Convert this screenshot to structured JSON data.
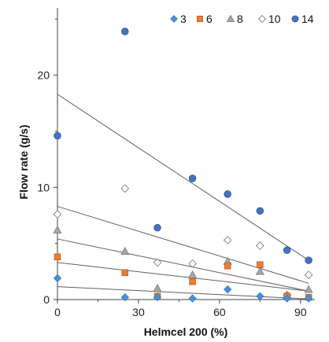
{
  "chart_data": {
    "type": "scatter",
    "title": "",
    "xlabel": "Helmcel 200 (%)",
    "ylabel": "Flow rate (g/s)",
    "xlim": [
      0,
      95
    ],
    "ylim": [
      0,
      26
    ],
    "x_ticks": [
      "0",
      "30",
      "60",
      "90"
    ],
    "x_tick_values": [
      0,
      30,
      60,
      90
    ],
    "y_ticks": [
      "0",
      "10",
      "20"
    ],
    "y_tick_values": [
      0,
      10,
      20
    ],
    "grid": false,
    "legend_position": "top-right",
    "series": [
      {
        "name": "3",
        "marker": "diamond",
        "color": "#4a90d9",
        "points": [
          [
            0,
            1.9
          ],
          [
            25,
            0.2
          ],
          [
            37,
            0.2
          ],
          [
            50,
            0.1
          ],
          [
            63,
            0.9
          ],
          [
            75,
            0.3
          ],
          [
            85,
            0.1
          ],
          [
            93,
            0.1
          ]
        ],
        "trend": [
          [
            0,
            1.15
          ],
          [
            93,
            0.05
          ]
        ]
      },
      {
        "name": "6",
        "marker": "square",
        "color": "#ed7d31",
        "points": [
          [
            0,
            3.8
          ],
          [
            25,
            2.4
          ],
          [
            37,
            0.3
          ],
          [
            50,
            1.6
          ],
          [
            63,
            3.0
          ],
          [
            75,
            3.1
          ],
          [
            85,
            0.3
          ],
          [
            93,
            0.2
          ]
        ],
        "trend": [
          [
            0,
            3.3
          ],
          [
            93,
            0.75
          ]
        ]
      },
      {
        "name": "8",
        "marker": "triangle",
        "color": "#a6a6a6",
        "points": [
          [
            0,
            6.2
          ],
          [
            25,
            4.3
          ],
          [
            37,
            1.0
          ],
          [
            50,
            2.2
          ],
          [
            63,
            3.4
          ],
          [
            75,
            2.5
          ],
          [
            85,
            0.4
          ],
          [
            93,
            0.9
          ]
        ],
        "trend": [
          [
            0,
            5.4
          ],
          [
            93,
            0.75
          ]
        ]
      },
      {
        "name": "10",
        "marker": "open-diamond",
        "color": "#ffffff",
        "points": [
          [
            0,
            7.6
          ],
          [
            25,
            9.9
          ],
          [
            37,
            3.3
          ],
          [
            50,
            3.2
          ],
          [
            63,
            5.3
          ],
          [
            75,
            4.8
          ],
          [
            85,
            0.4
          ],
          [
            93,
            2.2
          ]
        ],
        "trend": [
          [
            0,
            8.3
          ],
          [
            93,
            1.45
          ]
        ]
      },
      {
        "name": "14",
        "marker": "circle",
        "color": "#4472c4",
        "points": [
          [
            0,
            14.6
          ],
          [
            25,
            23.9
          ],
          [
            37,
            6.4
          ],
          [
            50,
            10.8
          ],
          [
            63,
            9.4
          ],
          [
            75,
            7.9
          ],
          [
            85,
            4.4
          ],
          [
            93,
            3.5
          ]
        ],
        "trend": [
          [
            0,
            18.3
          ],
          [
            93,
            3.5
          ]
        ]
      }
    ]
  }
}
